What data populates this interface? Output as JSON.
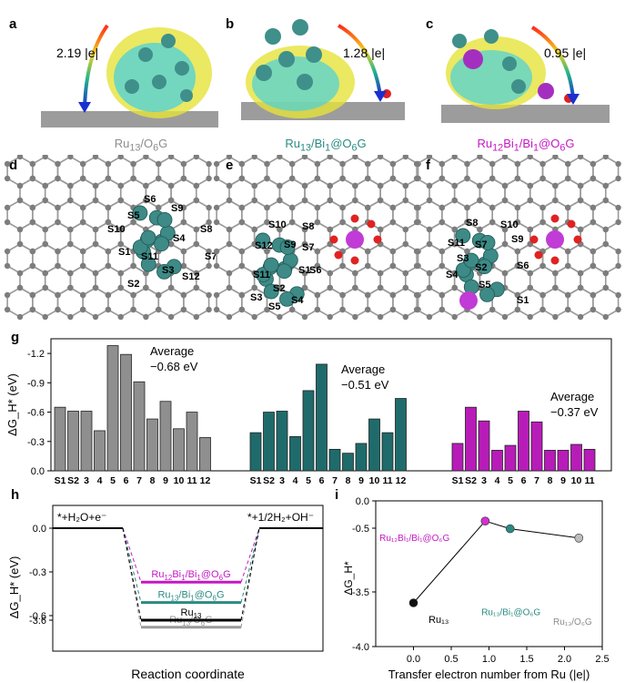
{
  "panels": {
    "a": "a",
    "b": "b",
    "c": "c",
    "d": "d",
    "e": "e",
    "f": "f",
    "g": "g",
    "h": "h",
    "i": "i"
  },
  "charge_transfer": [
    "2.19 |e|",
    "1.28 |e|",
    "0.95 |e|"
  ],
  "captions": [
    {
      "base": "Ru",
      "sub1": "13",
      "mid": "/O",
      "sub2": "6",
      "tail": "G",
      "color": "#8c8c8c"
    },
    {
      "base": "Ru",
      "sub1": "13",
      "mid": "/Bi",
      "sub2": "1",
      "tail": "@O",
      "sub3": "6",
      "end": "G",
      "color": "#2a8a83"
    },
    {
      "base": "Ru",
      "sub1": "12",
      "mid": "Bi",
      "sub2": "1",
      "tail": "/Bi",
      "sub3": "1",
      "end": "@O",
      "sub4": "6",
      "end2": "G",
      "color": "#c418c4"
    }
  ],
  "site_labels": {
    "d": [
      "S6",
      "S9",
      "S5",
      "S10",
      "S4",
      "S8",
      "S1",
      "S11",
      "S7",
      "S3",
      "S12",
      "S2"
    ],
    "e": [
      "S10",
      "S8",
      "S9",
      "S12",
      "S7",
      "S1",
      "S11",
      "S6",
      "S2",
      "S3",
      "S4",
      "S5"
    ],
    "f": [
      "S8",
      "S10",
      "S7",
      "S9",
      "S11",
      "S3",
      "S2",
      "S6",
      "S4",
      "S5",
      "S1"
    ]
  },
  "chart_data": [
    {
      "type": "bar",
      "panel": "g",
      "ylabel": "ΔG_H* (eV)",
      "ylim": [
        0,
        -1.35
      ],
      "yticks": [
        "-1.2",
        "-0.9",
        "-0.6",
        "-0.3",
        "0.0"
      ],
      "series": [
        {
          "name": "Ru13/O6G",
          "color": "#8f8f8f",
          "categories": [
            "S1",
            "S2",
            "3",
            "4",
            "5",
            "6",
            "7",
            "8",
            "9",
            "10",
            "11",
            "12"
          ],
          "values": [
            -0.65,
            -0.61,
            -0.61,
            -0.41,
            -1.28,
            -1.19,
            -0.91,
            -0.53,
            -0.71,
            -0.43,
            -0.6,
            -0.34
          ],
          "average_label": [
            "Average",
            "−0.68 eV"
          ]
        },
        {
          "name": "Ru13/Bi1@O6G",
          "color": "#1f6b6b",
          "categories": [
            "S1",
            "S2",
            "3",
            "4",
            "5",
            "6",
            "7",
            "8",
            "9",
            "10",
            "11",
            "12"
          ],
          "values": [
            -0.39,
            -0.6,
            -0.61,
            -0.35,
            -0.82,
            -1.09,
            -0.22,
            -0.18,
            -0.28,
            -0.53,
            -0.39,
            -0.74
          ],
          "average_label": [
            "Average",
            "−0.51 eV"
          ]
        },
        {
          "name": "Ru12Bi1/Bi1@O6G",
          "color": "#b81cb8",
          "categories": [
            "S1",
            "S2",
            "3",
            "4",
            "5",
            "6",
            "7",
            "8",
            "9",
            "10",
            "11"
          ],
          "values": [
            -0.28,
            -0.65,
            -0.51,
            -0.21,
            -0.26,
            -0.61,
            -0.5,
            -0.21,
            -0.21,
            -0.27,
            -0.22
          ],
          "average_label": [
            "Average",
            "−0.37 eV"
          ]
        }
      ]
    },
    {
      "type": "line",
      "panel": "h",
      "xlabel": "Reaction coordinate",
      "ylabel": "ΔG_H* (eV)",
      "yticks": [
        "0.0",
        "-0.3",
        "-0.6",
        "-3.6"
      ],
      "left_label": "*+H₂O+e⁻",
      "right_label": "*+1/2H₂+OH⁻",
      "levels": [
        {
          "name": "Ru12Bi1/Bi1@O6G",
          "value": -0.37,
          "color": "#c418c4"
        },
        {
          "name": "Ru13/Bi1@O6G",
          "value": -0.51,
          "color": "#2a8a83"
        },
        {
          "name": "Ru13/O6G",
          "value": -0.68,
          "color": "#9a9a9a"
        },
        {
          "name": "Ru13",
          "value": -3.6,
          "color": "#000000"
        }
      ]
    },
    {
      "type": "scatter",
      "panel": "i",
      "xlabel": "Transfer electron number from Ru (|e|)",
      "ylabel": "ΔG_H*",
      "xlim": [
        -0.5,
        2.5
      ],
      "xticks": [
        "0.0",
        "0.5",
        "1.0",
        "1.5",
        "2.0",
        "2.5"
      ],
      "yticks": [
        "0.0",
        "-0.5",
        "-3.5",
        "-4.0"
      ],
      "points": [
        {
          "name": "Ru13",
          "x": 0.0,
          "y": -3.6,
          "color": "#111111"
        },
        {
          "name": "Ru12Bi1/Bi1@O6G",
          "x": 0.95,
          "y": -0.37,
          "color": "#d42fd4"
        },
        {
          "name": "Ru13/Bi1@O6G",
          "x": 1.28,
          "y": -0.51,
          "color": "#2a8a83"
        },
        {
          "name": "Ru13/O6G",
          "x": 2.19,
          "y": -0.68,
          "color": "#bdbdbd"
        }
      ]
    }
  ]
}
